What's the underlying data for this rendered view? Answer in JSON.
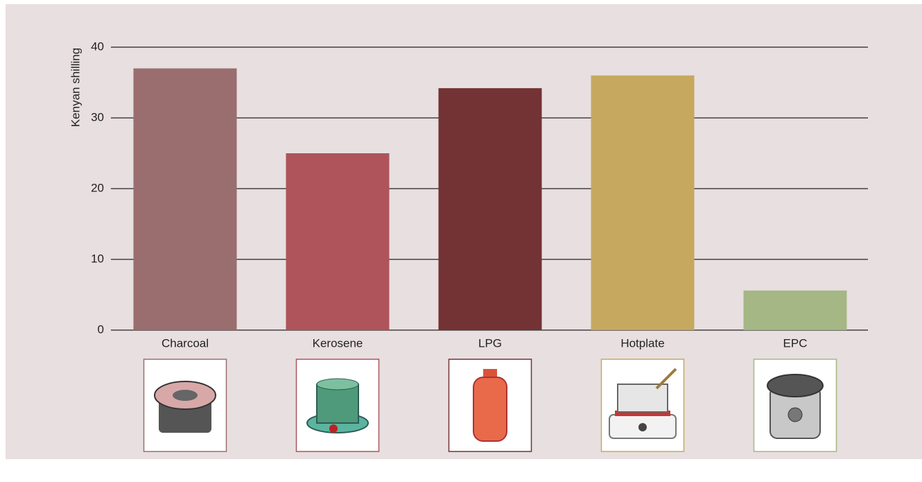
{
  "chart_data": {
    "type": "bar",
    "y_label": "Kenyan shilling",
    "categories": [
      "Charcoal",
      "Kerosene",
      "LPG",
      "Hotplate",
      "EPC"
    ],
    "values": [
      37,
      25,
      34.2,
      36,
      5.6
    ],
    "colors": [
      "#9a6e6e",
      "#ae545a",
      "#733234",
      "#c6a95f",
      "#a5b784"
    ],
    "ylim": [
      0,
      40
    ],
    "yticks": [
      0,
      10,
      20,
      30,
      40
    ],
    "grid": true
  }
}
